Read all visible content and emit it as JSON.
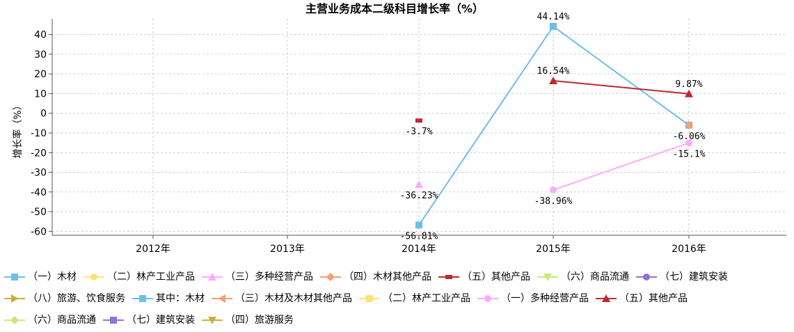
{
  "chart_data": {
    "type": "line",
    "title": "主营业务成本二级科目增长率（%）",
    "xlabel": "",
    "ylabel": "增长率（%）",
    "categories": [
      "2012年",
      "2013年",
      "2014年",
      "2015年",
      "2016年"
    ],
    "ylim": [
      -62,
      48
    ],
    "yticks": [
      40,
      30,
      20,
      10,
      0,
      -10,
      -20,
      -30,
      -40,
      -50,
      -60
    ],
    "grid": true,
    "legend_position": "bottom",
    "series": [
      {
        "name": "（一）木材",
        "color": "#6cbfe6",
        "marker": "square",
        "values": [
          null,
          null,
          -56.81,
          44.14,
          -6.06
        ],
        "labels": [
          null,
          null,
          "-56.81%",
          "44.14%",
          "-6.06%"
        ],
        "label_pos": [
          "",
          "",
          "below",
          "above",
          "below"
        ]
      },
      {
        "name": "（二）林产工业产品",
        "color": "#ffe07a",
        "marker": "circle",
        "values": [
          null,
          null,
          null,
          null,
          null
        ],
        "labels": [
          null,
          null,
          null,
          null,
          null
        ],
        "label_pos": [
          "",
          "",
          "",
          "",
          ""
        ]
      },
      {
        "name": "（三）多种经营产品",
        "color": "#ffaaff",
        "marker": "triangle",
        "values": [
          null,
          null,
          -36.23,
          null,
          null
        ],
        "labels": [
          null,
          null,
          "-36.23%",
          null,
          null
        ],
        "label_pos": [
          "",
          "",
          "below",
          "",
          ""
        ]
      },
      {
        "name": "（四）木材其他产品",
        "color": "#f5a070",
        "marker": "diamond",
        "values": [
          null,
          null,
          null,
          null,
          -6.06
        ],
        "labels": [
          null,
          null,
          null,
          null,
          null
        ],
        "label_pos": [
          "",
          "",
          "",
          "",
          ""
        ]
      },
      {
        "name": "（五）其他产品",
        "color": "#c0292b",
        "marker": "dash",
        "values": [
          null,
          null,
          -3.7,
          null,
          null
        ],
        "labels": [
          null,
          null,
          "-3.7%",
          null,
          null
        ],
        "label_pos": [
          "",
          "",
          "below",
          "",
          ""
        ]
      },
      {
        "name": "（六）商品流通",
        "color": "#c8e87a",
        "marker": "triangle-down",
        "values": [
          null,
          null,
          null,
          null,
          null
        ],
        "labels": [
          null,
          null,
          null,
          null,
          null
        ],
        "label_pos": [
          "",
          "",
          "",
          "",
          ""
        ]
      },
      {
        "name": "（七）建筑安装",
        "color": "#9370db",
        "marker": "circle",
        "values": [
          null,
          null,
          null,
          null,
          null
        ],
        "labels": [
          null,
          null,
          null,
          null,
          null
        ],
        "label_pos": [
          "",
          "",
          "",
          "",
          ""
        ]
      },
      {
        "name": "（八）旅游、饮食服务",
        "color": "#c8b040",
        "marker": "triangle-right",
        "values": [
          null,
          null,
          null,
          null,
          null
        ],
        "labels": [
          null,
          null,
          null,
          null,
          null
        ],
        "label_pos": [
          "",
          "",
          "",
          "",
          ""
        ]
      },
      {
        "name": "其中：木材",
        "color": "#6cbfe6",
        "marker": "square",
        "values": [
          null,
          null,
          null,
          null,
          null
        ],
        "labels": [
          null,
          null,
          null,
          null,
          null
        ],
        "label_pos": [
          "",
          "",
          "",
          "",
          ""
        ]
      },
      {
        "name": "（三）木材及木材其他产品",
        "color": "#f5a070",
        "marker": "triangle-left",
        "values": [
          null,
          null,
          null,
          null,
          null
        ],
        "labels": [
          null,
          null,
          null,
          null,
          null
        ],
        "label_pos": [
          "",
          "",
          "",
          "",
          ""
        ]
      },
      {
        "name": "（二）林产工业产品",
        "color": "#ffe07a",
        "marker": "square",
        "values": [
          null,
          null,
          null,
          null,
          null
        ],
        "labels": [
          null,
          null,
          null,
          null,
          null
        ],
        "label_pos": [
          "",
          "",
          "",
          "",
          ""
        ]
      },
      {
        "name": "（一）多种经营产品",
        "color": "#ffaaff",
        "marker": "circle",
        "values": [
          null,
          null,
          null,
          -38.96,
          -15.1
        ],
        "labels": [
          null,
          null,
          null,
          "-38.96%",
          "-15.1%"
        ],
        "label_pos": [
          "",
          "",
          "",
          "below",
          "below"
        ]
      },
      {
        "name": "（五）其他产品",
        "color": "#c0292b",
        "marker": "triangle",
        "values": [
          null,
          null,
          null,
          16.54,
          9.87
        ],
        "labels": [
          null,
          null,
          null,
          "16.54%",
          "9.87%"
        ],
        "label_pos": [
          "",
          "",
          "",
          "above",
          "above"
        ]
      },
      {
        "name": "（六）商品流通",
        "color": "#c8e87a",
        "marker": "diamond",
        "values": [
          null,
          null,
          null,
          null,
          null
        ],
        "labels": [
          null,
          null,
          null,
          null,
          null
        ],
        "label_pos": [
          "",
          "",
          "",
          "",
          ""
        ]
      },
      {
        "name": "（七）建筑安装",
        "color": "#9370db",
        "marker": "square",
        "values": [
          null,
          null,
          null,
          null,
          null
        ],
        "labels": [
          null,
          null,
          null,
          null,
          null
        ],
        "label_pos": [
          "",
          "",
          "",
          "",
          ""
        ]
      },
      {
        "name": "（四）旅游服务",
        "color": "#c8b040",
        "marker": "triangle-down",
        "values": [
          null,
          null,
          null,
          null,
          null
        ],
        "labels": [
          null,
          null,
          null,
          null,
          null
        ],
        "label_pos": [
          "",
          "",
          "",
          "",
          ""
        ]
      }
    ]
  }
}
